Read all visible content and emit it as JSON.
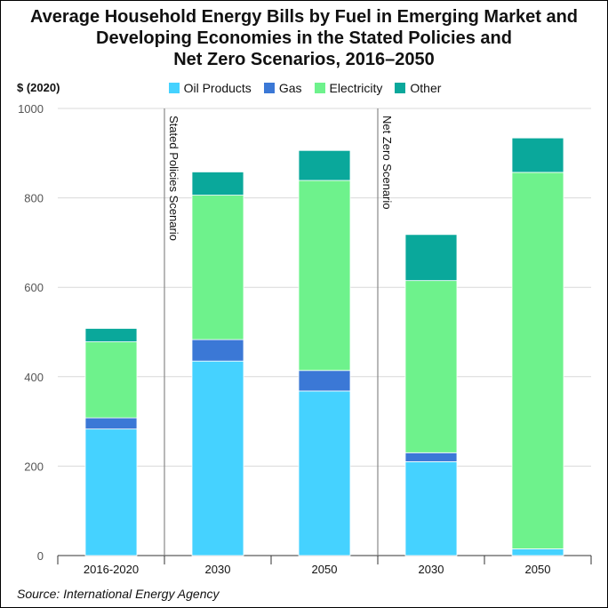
{
  "chart_data": {
    "type": "bar",
    "stacked": true,
    "title_lines": [
      "Average Household Energy Bills by Fuel in Emerging Market and",
      "Developing Economies in the Stated Policies and",
      "Net Zero Scenarios, 2016–2050"
    ],
    "ylabel": "$ (2020)",
    "ylim": [
      0,
      1000
    ],
    "yticks": [
      0,
      200,
      400,
      600,
      800,
      1000
    ],
    "categories": [
      "2016-2020",
      "2030",
      "2050",
      "2030",
      "2050"
    ],
    "series": [
      {
        "name": "Oil Products",
        "color": "#45d2ff",
        "values": [
          283,
          435,
          368,
          210,
          15
        ]
      },
      {
        "name": "Gas",
        "color": "#3b78d6",
        "values": [
          25,
          48,
          46,
          20,
          0
        ]
      },
      {
        "name": "Electricity",
        "color": "#6ef28c",
        "values": [
          170,
          323,
          425,
          385,
          842
        ]
      },
      {
        "name": "Other",
        "color": "#0aa89b",
        "values": [
          30,
          52,
          67,
          103,
          77
        ]
      }
    ],
    "scenario_labels": [
      "Stated Policies Scenario",
      "Net Zero Scenario"
    ],
    "grid": true,
    "legend_position": "top-center",
    "source": "Source: International Energy Agency"
  }
}
